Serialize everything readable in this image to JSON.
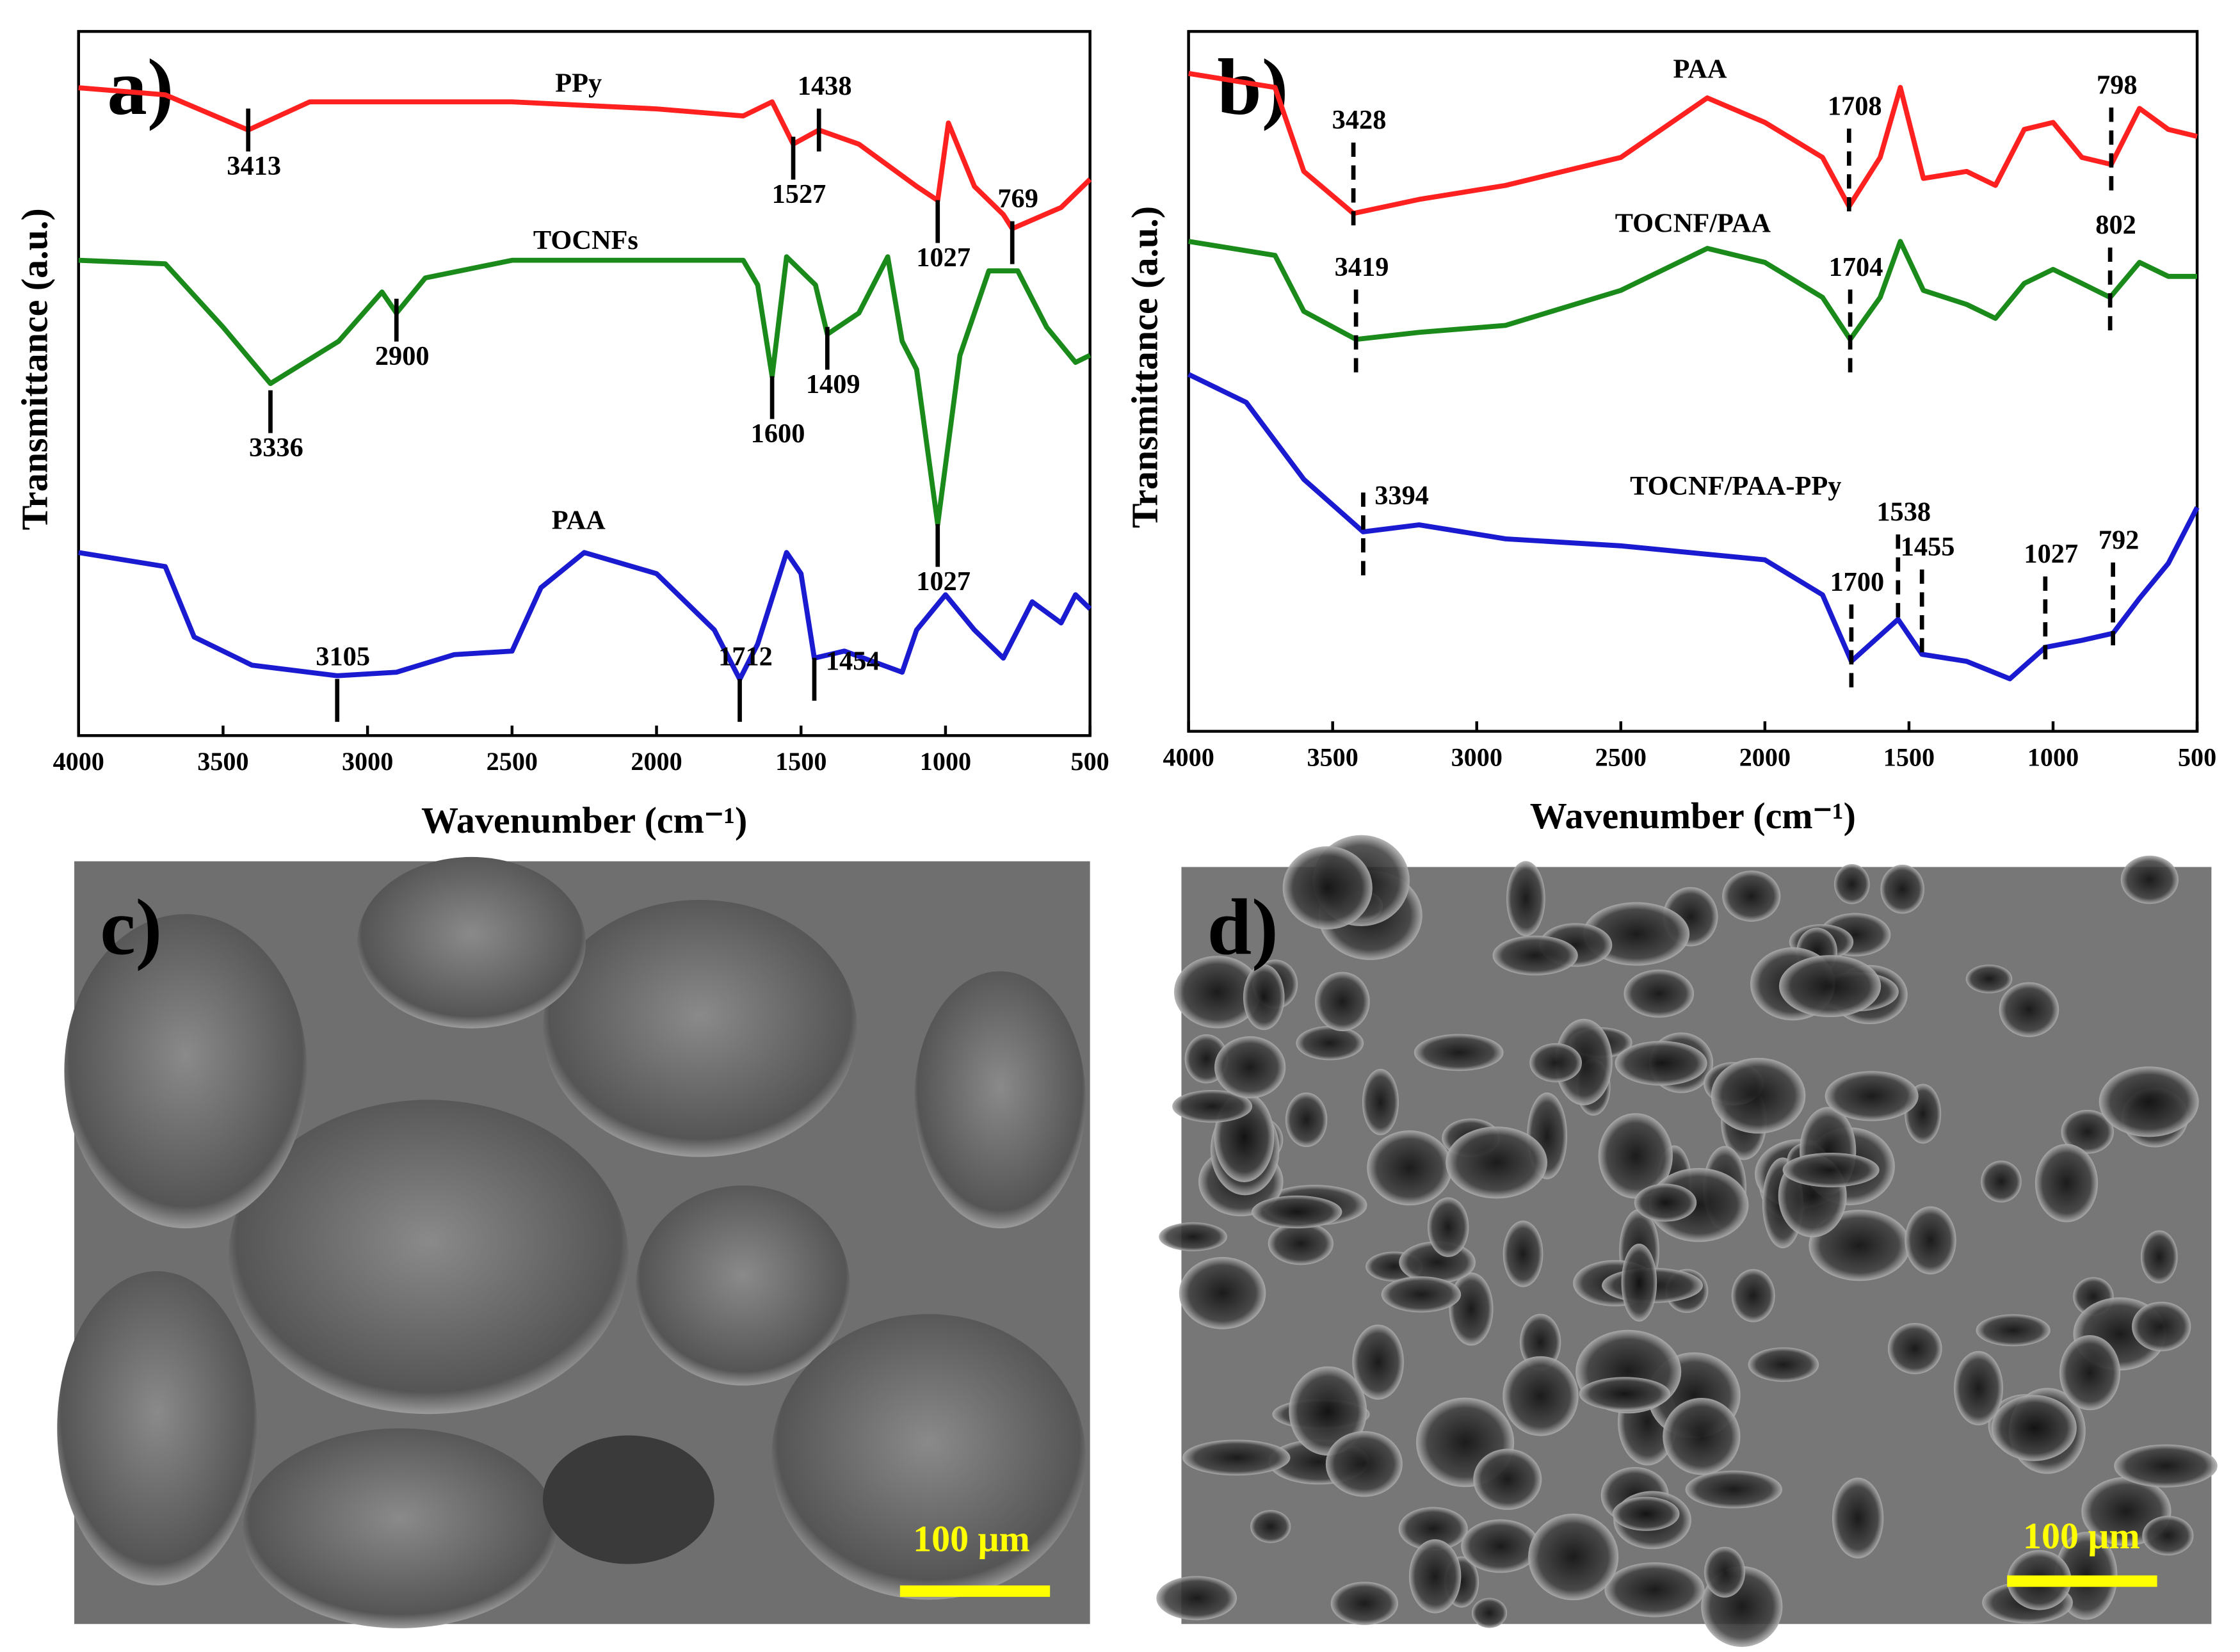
{
  "chart_data": [
    {
      "type": "line",
      "label": "a)",
      "xlabel": "Wavenumber (cm⁻¹)",
      "ylabel": "Transmittance (a.u.)",
      "xlim": [
        4000,
        500
      ],
      "ylim": [
        0,
        100
      ],
      "xticks": [
        4000,
        3500,
        3000,
        2500,
        2000,
        1500,
        1000,
        500
      ],
      "series": [
        {
          "name": "PPy",
          "color": "#ff2020",
          "x": [
            4000,
            3700,
            3413,
            3200,
            2500,
            2000,
            1700,
            1600,
            1527,
            1438,
            1300,
            1100,
            1027,
            990,
            900,
            800,
            769,
            600,
            500
          ],
          "values": [
            92,
            91,
            86,
            90,
            90,
            89,
            88,
            90,
            84,
            86,
            84,
            78,
            76,
            87,
            78,
            74,
            72,
            75,
            79
          ]
        },
        {
          "name": "TOCNFs",
          "color": "#1a8a1a",
          "x": [
            4000,
            3700,
            3500,
            3336,
            3100,
            2950,
            2900,
            2800,
            2500,
            1700,
            1650,
            1600,
            1550,
            1450,
            1409,
            1300,
            1200,
            1150,
            1100,
            1027,
            950,
            850,
            750,
            650,
            550,
            500
          ],
          "values": [
            67.5,
            67,
            58,
            50,
            56,
            63,
            60,
            65,
            67.5,
            67.5,
            64,
            51,
            68,
            64,
            57,
            60,
            68,
            56,
            52,
            30,
            54,
            66,
            66,
            58,
            53,
            54
          ]
        },
        {
          "name": "PAA",
          "color": "#1a1ad0",
          "x": [
            4000,
            3700,
            3600,
            3400,
            3105,
            2900,
            2700,
            2500,
            2400,
            2250,
            2000,
            1800,
            1712,
            1650,
            1550,
            1500,
            1454,
            1350,
            1150,
            1100,
            1000,
            900,
            800,
            700,
            600,
            550,
            500
          ],
          "values": [
            26,
            24,
            14,
            10,
            8.5,
            9,
            11.5,
            12,
            21,
            26,
            23,
            15,
            8,
            13,
            26,
            23,
            11,
            12,
            9,
            15,
            20,
            15,
            11,
            19,
            16,
            20,
            18
          ]
        }
      ],
      "annotations": [
        {
          "x": 3413,
          "y": 86
        },
        {
          "x": 1527,
          "y": 82
        },
        {
          "x": 1438,
          "y": 86
        },
        {
          "x": 1027,
          "y": 73
        },
        {
          "x": 769,
          "y": 70
        },
        {
          "x": 3336,
          "y": 46
        },
        {
          "x": 2900,
          "y": 59
        },
        {
          "x": 1600,
          "y": 48
        },
        {
          "x": 1409,
          "y": 55
        },
        {
          "x": 1027,
          "y": 27
        },
        {
          "x": 3105,
          "y": 5
        },
        {
          "x": 1712,
          "y": 5
        },
        {
          "x": 1454,
          "y": 8
        }
      ]
    },
    {
      "type": "line",
      "label": "b)",
      "xlabel": "Wavenumber (cm⁻¹)",
      "ylabel": "Transmittance (a.u.)",
      "xlim": [
        4000,
        500
      ],
      "ylim": [
        0,
        100
      ],
      "xticks": [
        4000,
        3500,
        3000,
        2500,
        2000,
        1500,
        1000,
        500
      ],
      "series": [
        {
          "name": "PAA",
          "color": "#ff2020",
          "x": [
            4000,
            3700,
            3600,
            3428,
            3200,
            2900,
            2500,
            2200,
            2000,
            1800,
            1708,
            1600,
            1530,
            1450,
            1300,
            1200,
            1100,
            1000,
            900,
            798,
            700,
            600,
            500
          ],
          "values": [
            94,
            92,
            80,
            74,
            76,
            78,
            82,
            90.5,
            87,
            82,
            75,
            82,
            92,
            79,
            80,
            78,
            86,
            87,
            82,
            81,
            89,
            86,
            85
          ]
        },
        {
          "name": "TOCNF/PAA",
          "color": "#1a8a1a",
          "x": [
            4000,
            3700,
            3600,
            3419,
            3200,
            2900,
            2500,
            2200,
            2000,
            1800,
            1704,
            1600,
            1530,
            1450,
            1300,
            1200,
            1100,
            1000,
            900,
            802,
            700,
            600,
            500
          ],
          "values": [
            70,
            68,
            60,
            56,
            57,
            58,
            63,
            69,
            67,
            62,
            56,
            62,
            70,
            63,
            61,
            59,
            64,
            66,
            64,
            62,
            67,
            65,
            65
          ]
        },
        {
          "name": "TOCNF/PAA-PPy",
          "color": "#1a1ad0",
          "x": [
            4000,
            3800,
            3600,
            3394,
            3200,
            2900,
            2500,
            2000,
            1800,
            1700,
            1538,
            1455,
            1300,
            1150,
            1027,
            900,
            792,
            700,
            600,
            500
          ],
          "values": [
            51,
            47,
            36,
            28.5,
            29.5,
            27.5,
            26.5,
            24.5,
            19.5,
            10,
            16,
            11,
            10,
            7.5,
            12,
            13,
            14,
            19,
            24,
            32
          ]
        }
      ],
      "annotations": [
        {
          "x": 3428,
          "y": 78
        },
        {
          "x": 1708,
          "y": 80
        },
        {
          "x": 798,
          "y": 83
        },
        {
          "x": 3419,
          "y": 57
        },
        {
          "x": 1704,
          "y": 57
        },
        {
          "x": 802,
          "y": 63
        },
        {
          "x": 3394,
          "y": 28
        },
        {
          "x": 1538,
          "y": 22
        },
        {
          "x": 1455,
          "y": 17
        },
        {
          "x": 1700,
          "y": 12
        },
        {
          "x": 1027,
          "y": 16
        },
        {
          "x": 792,
          "y": 18
        }
      ]
    }
  ],
  "images": [
    {
      "label": "c)",
      "scale_bar": "100 μm"
    },
    {
      "label": "d)",
      "scale_bar": "100 μm"
    }
  ]
}
